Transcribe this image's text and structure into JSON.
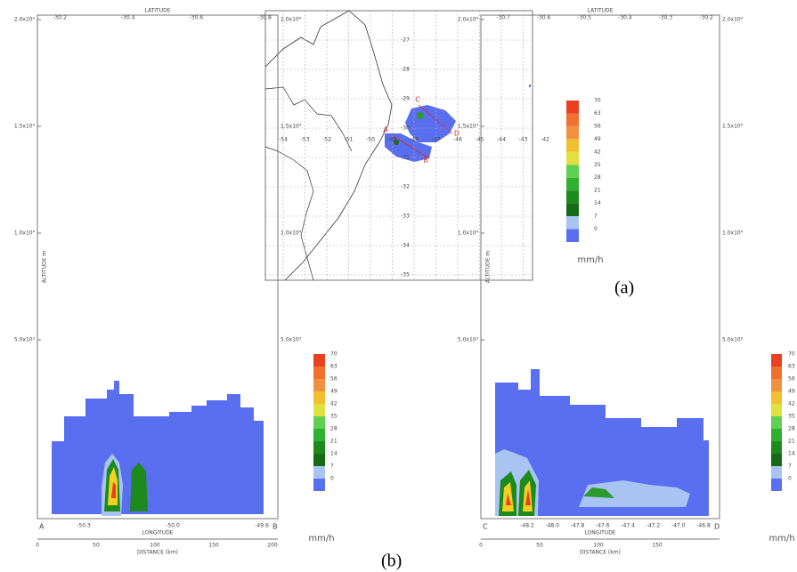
{
  "figure": {
    "panel_a": {
      "caption": "(a)",
      "lon_ticks": [
        "-54",
        "-53",
        "-52",
        "-51",
        "-50",
        "-49",
        "-48",
        "-47",
        "-46",
        "-45",
        "-44",
        "-43",
        "-42"
      ],
      "lat_ticks": [
        "-27",
        "-28",
        "-29",
        "-30",
        "-31",
        "-32",
        "-33",
        "-34",
        "-35"
      ],
      "section_labels": [
        "C",
        "D",
        "A",
        "B"
      ],
      "colorbar": {
        "labels": [
          "70",
          "63",
          "56",
          "49",
          "42",
          "35",
          "28",
          "21",
          "14",
          "7",
          "0"
        ],
        "unit": "mm/h"
      }
    },
    "panel_b": {
      "caption": "(b)",
      "left": {
        "top_axis_title": "LATITUDE",
        "top_ticks": [
          "-30.2",
          "-30.4",
          "-30.6",
          "-30.8"
        ],
        "y_axis_title": "ALTITUDE m",
        "y_ticks": [
          "2.0x10⁴",
          "1.5x10⁴",
          "1.0x10⁴",
          "5.0x10³"
        ],
        "bottom_axis_title": "LONGITUDE",
        "bottom_ticks": [
          "-50.3",
          "-50.0",
          "-49.6"
        ],
        "distance_title": "DISTANCE (km)",
        "distance_ticks": [
          "0",
          "50",
          "100",
          "150",
          "200"
        ],
        "end_labels": [
          "A",
          "B"
        ],
        "colorbar": {
          "labels": [
            "70",
            "63",
            "56",
            "49",
            "42",
            "35",
            "28",
            "21",
            "14",
            "7",
            "0"
          ],
          "unit": "mm/h"
        }
      },
      "right": {
        "top_axis_title": "LATITUDE",
        "top_ticks": [
          "-30.7",
          "-30.6",
          "-30.5",
          "-30.4",
          "-30.3",
          "-30.2"
        ],
        "y_axis_title": "ALTITUDE m",
        "y_ticks": [
          "2.0x10⁴",
          "1.5x10⁴",
          "1.0x10⁴",
          "5.0x10³"
        ],
        "bottom_axis_title": "LONGITUDE",
        "bottom_ticks": [
          "-48.2",
          "-48.0",
          "-47.8",
          "-47.6",
          "-47.4",
          "-47.2",
          "-47.0",
          "-46.8"
        ],
        "distance_title": "DISTANCE (km)",
        "distance_ticks": [
          "0",
          "50",
          "100",
          "150"
        ],
        "end_labels": [
          "C",
          "D"
        ],
        "colorbar": {
          "labels": [
            "70",
            "63",
            "56",
            "49",
            "42",
            "35",
            "28",
            "21",
            "14",
            "7",
            "0"
          ],
          "unit": "mm/h"
        }
      }
    }
  }
}
